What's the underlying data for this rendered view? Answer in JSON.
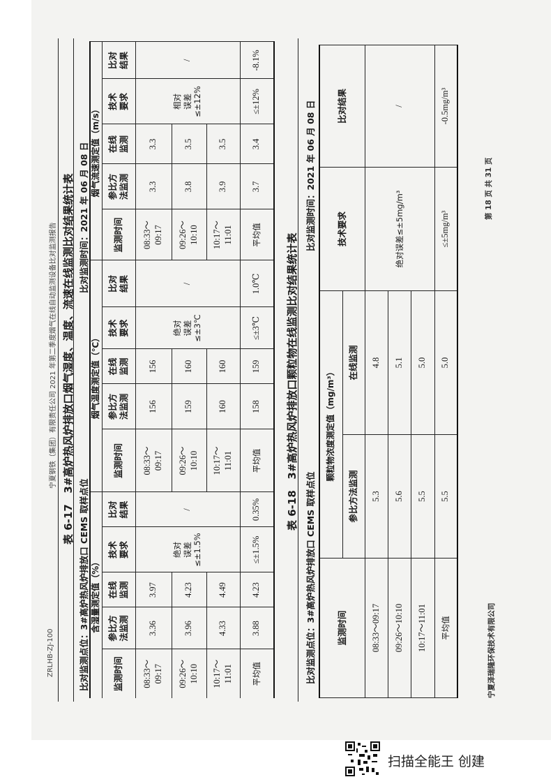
{
  "running_header": {
    "code": "ZRLHB-ZJ-100",
    "report": "宁夏钢铁（集团）有限责任公司 2021 年第二季度烟气在线自动监测设备比对监测报告"
  },
  "table17": {
    "number": "表 6-17",
    "title": "3#高炉热风炉排放口烟气湿度、温度、流速在线监测比对结果统计表",
    "location": "比对监测点位：3#高炉热风炉排放口 CEMS 取样点位",
    "time": "比对监测时间：2021 年 06 月 08 日",
    "groups": [
      "含湿量测定值（%）",
      "烟气温度测定值（℃）",
      "烟气流速测定值（m/s）"
    ],
    "col_headers": [
      "监测时间",
      "参比方\n法监测",
      "在线\n监测",
      "技术\n要求",
      "比对\n结果"
    ],
    "times": [
      "08:33～\n09:17",
      "09:26～\n10:10",
      "10:17～\n11:01",
      "平均值"
    ],
    "humidity": {
      "ref": [
        "3.36",
        "3.96",
        "4.33",
        "3.88"
      ],
      "online": [
        "3.97",
        "4.23",
        "4.49",
        "4.23"
      ],
      "req": "绝对\n误差\n≤±1.5%",
      "req_avg": "≤±1.5%",
      "result": "/",
      "result_avg": "0.35%"
    },
    "temperature": {
      "ref": [
        "156",
        "159",
        "160",
        "158"
      ],
      "online": [
        "156",
        "160",
        "160",
        "159"
      ],
      "req": "绝对\n误差\n≤±3℃",
      "req_avg": "≤±3℃",
      "result": "/",
      "result_avg": "1.0℃"
    },
    "flow": {
      "ref": [
        "3.3",
        "3.8",
        "3.9",
        "3.7"
      ],
      "online": [
        "3.3",
        "3.5",
        "3.5",
        "3.4"
      ],
      "req": "相对\n误差\n≤±12%",
      "req_avg": "≤±12%",
      "result": "/",
      "result_avg": "-8.1%"
    }
  },
  "table18": {
    "number": "表 6-18",
    "title": "3#高炉热风炉排放口颗粒物在线监测比对结果统计表",
    "location": "比对监测点位：3#高炉热风炉排放口 CEMS 取样点位",
    "time": "比对监测时间：2021 年 06 月 08 日",
    "group": "颗粒物浓度测定值（mg/m³）",
    "col_headers": [
      "监测时间",
      "参比方法监测",
      "在线监测",
      "技术要求",
      "比对结果"
    ],
    "times": [
      "08:33～09:17",
      "09:26～10:10",
      "10:17～11:01",
      "平均值"
    ],
    "ref": [
      "5.3",
      "5.6",
      "5.5",
      "5.5"
    ],
    "online": [
      "4.8",
      "5.1",
      "5.0",
      "5.0"
    ],
    "req": "绝对误差≤±5mg/m³",
    "req_avg": "≤±5mg/m³",
    "result": "/",
    "result_avg": "-0.5mg/m³"
  },
  "footer": {
    "company": "宁夏泽瑞隆环保技术有限公司",
    "page": "第 18 页 共 31 页"
  },
  "watermark": {
    "text": "扫描全能王 创建",
    "qr_icon": "qr-code-icon"
  }
}
